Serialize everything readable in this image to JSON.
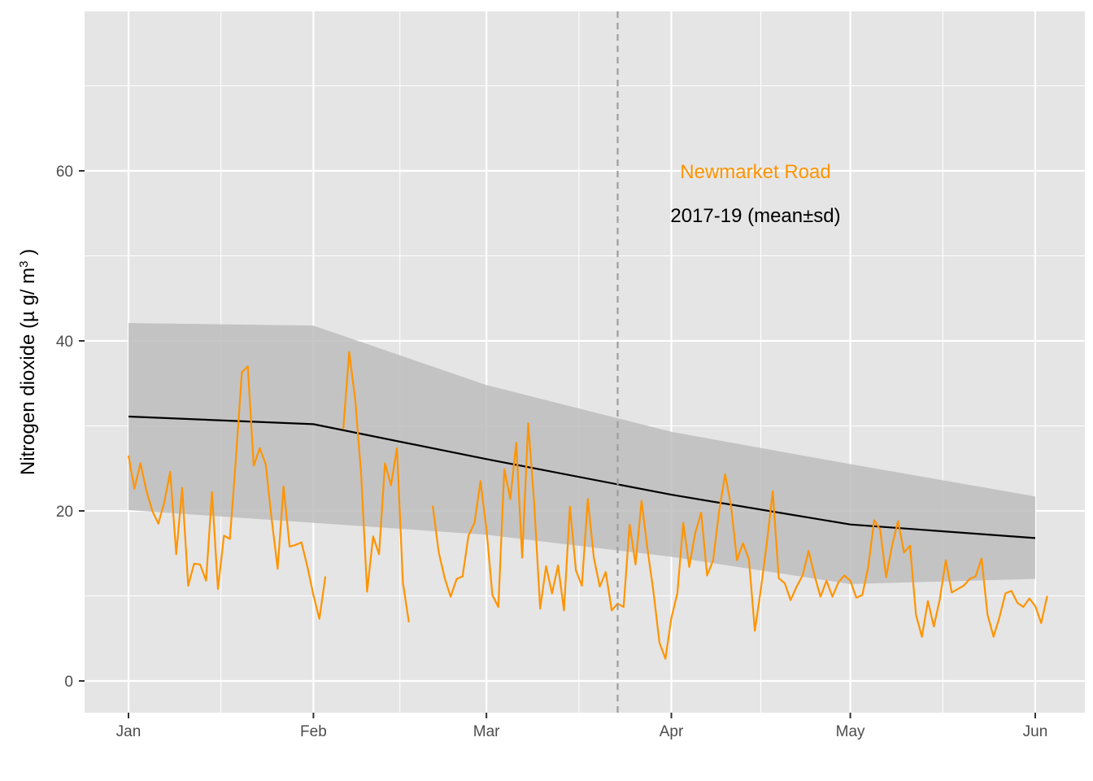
{
  "chart_data": {
    "type": "line",
    "ylabel": "Nitrogen dioxide (µ g/ m³ )",
    "ylabel_main": "Nitrogen dioxide (µ g/ m",
    "ylabel_sup": "3",
    "ylabel_close": " )",
    "xlabel": "",
    "x_axis_type": "date",
    "xlim": [
      "2020-01-01",
      "2020-06-01"
    ],
    "ylim": [
      0,
      75
    ],
    "x_ticks": [
      {
        "date": "2020-01-01",
        "label": "Jan"
      },
      {
        "date": "2020-02-01",
        "label": "Feb"
      },
      {
        "date": "2020-03-01",
        "label": "Mar"
      },
      {
        "date": "2020-04-01",
        "label": "Apr"
      },
      {
        "date": "2020-05-01",
        "label": "May"
      },
      {
        "date": "2020-06-01",
        "label": "Jun"
      }
    ],
    "y_ticks": [
      0,
      20,
      40,
      60
    ],
    "grid": true,
    "annotations": {
      "site": "Newmarket Road",
      "baseline": "2017-19 (mean±sd)"
    },
    "event_line_date": "2020-03-23",
    "baseline": {
      "dates": [
        "2020-01-01",
        "2020-02-01",
        "2020-03-01",
        "2020-04-01",
        "2020-05-01",
        "2020-06-01"
      ],
      "mean": [
        31.1,
        30.2,
        26.1,
        21.9,
        18.4,
        16.8
      ],
      "upper": [
        42.1,
        41.8,
        34.8,
        29.3,
        25.5,
        21.7
      ],
      "lower": [
        20.1,
        18.6,
        17.2,
        14.6,
        11.4,
        12.0
      ]
    },
    "series": [
      {
        "start_date": "2020-01-01",
        "values": [
          26.5,
          22.6,
          25.6,
          22.4,
          20.0,
          18.5,
          21.0,
          24.6,
          14.9,
          22.7,
          11.2,
          13.8,
          13.7,
          11.8,
          22.2,
          10.8,
          17.1,
          16.7,
          26.0,
          36.3,
          37.0,
          25.3,
          27.4,
          25.5,
          19.0,
          13.2,
          22.9,
          15.8,
          16.0,
          16.3,
          13.4,
          10.1,
          7.3,
          12.3,
          null,
          null,
          29.6,
          38.7,
          33.1,
          24.3,
          10.5,
          17.0,
          14.9,
          25.6,
          23.0,
          27.4,
          11.6,
          6.9,
          null,
          null,
          null,
          20.6,
          15.2,
          12.1,
          9.9,
          12.0,
          12.3,
          17.1,
          18.6,
          23.5,
          17.9,
          10.1,
          8.7,
          24.9,
          21.4,
          28.0,
          14.5,
          30.3,
          21.0,
          8.5,
          13.5,
          10.3,
          13.6,
          8.3,
          20.5,
          13.0,
          11.2,
          21.4,
          14.5,
          11.1,
          12.8,
          8.3,
          9.1,
          8.7,
          18.4,
          13.7,
          21.2,
          15.5,
          10.5,
          4.5,
          2.6,
          7.4,
          10.3,
          18.6,
          13.4,
          17.4,
          19.8,
          12.4,
          14.2,
          19.9,
          24.3,
          20.6,
          14.2,
          16.2,
          14.3,
          5.9,
          10.8,
          16.2,
          22.3,
          12.1,
          11.5,
          9.5,
          11.1,
          12.4,
          15.3,
          12.4,
          9.9,
          11.8,
          9.9,
          11.6,
          12.4,
          11.8,
          9.8,
          10.1,
          13.4,
          18.9,
          17.8,
          12.2,
          15.9,
          18.8,
          15.1,
          15.9,
          7.8,
          5.2,
          9.4,
          6.4,
          9.6,
          14.2,
          10.4,
          10.8,
          11.2,
          12.0,
          12.3,
          14.4,
          7.8,
          5.2,
          7.5,
          10.3,
          10.6,
          9.2,
          8.7,
          9.7,
          8.8,
          6.8,
          10.0
        ]
      }
    ],
    "colors": {
      "series": "#ff9400",
      "mean_line": "#000000",
      "ribbon": "#bdbdbd",
      "panel": "#e5e5e5",
      "gridline": "#ffffff",
      "event_line": "#9e9e9e",
      "annotation_site": "#ff9400",
      "annotation_baseline": "#000000"
    }
  }
}
